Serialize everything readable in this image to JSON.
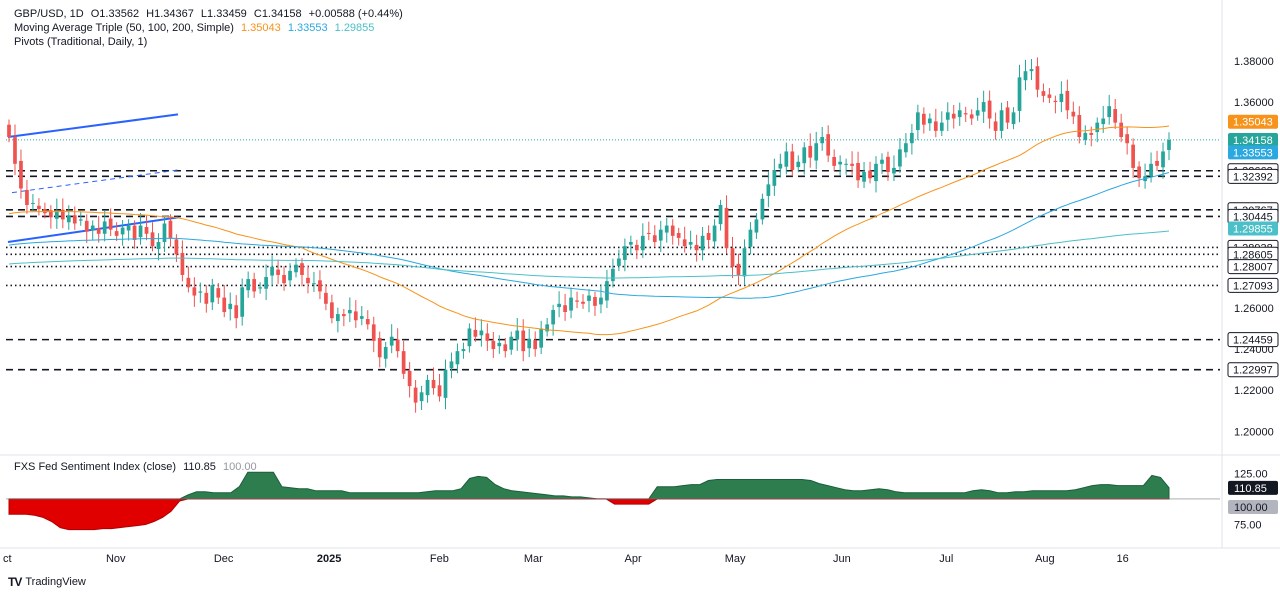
{
  "header": {
    "symbol_line": {
      "symbol": "GBP/USD, 1D",
      "open": "O1.33562",
      "high": "H1.34367",
      "low": "L1.33459",
      "close": "C1.34158",
      "change": "+0.00588 (+0.44%)"
    },
    "ma_line": {
      "label": "Moving Average Triple (50, 100, 200, Simple)",
      "v50": "1.35043",
      "v100": "1.33553",
      "v200": "1.29855"
    },
    "pivots_line": {
      "label": "Pivots (Traditional, Daily, 1)"
    }
  },
  "sentiment_legend": {
    "label": "FXS Fed Sentiment Index (close)",
    "value": "110.85",
    "base": "100.00"
  },
  "footer": {
    "brand": "TradingView"
  },
  "colors": {
    "up": "#26a69a",
    "down": "#ef5350",
    "ma50": "#f7931a",
    "ma100": "#2ba8e0",
    "ma200": "#4cc0c8",
    "trendline": "#2962ff",
    "sentiment_fill": "#2e7d4f",
    "sentiment_neg": "#e00000"
  },
  "chart_data": {
    "type": "candlestick",
    "title": "GBP/USD, 1D",
    "price_axis": {
      "ticks": [
        1.38,
        1.36,
        1.26,
        1.24,
        1.22,
        1.2
      ],
      "ylim": [
        1.19,
        1.395
      ]
    },
    "x_ticks": [
      "Oct",
      "Nov",
      "Dec",
      "2025",
      "Feb",
      "Mar",
      "Apr",
      "May",
      "Jun",
      "Jul",
      "Aug",
      "16"
    ],
    "price_badges": [
      {
        "label": "1.35043",
        "value": 1.35043,
        "color": "#f7931a"
      },
      {
        "label": "1.34158",
        "value": 1.34158,
        "color": "#26a69a"
      },
      {
        "label": "1.33553",
        "value": 1.33553,
        "color": "#2ba8e0"
      },
      {
        "label": "1.32663",
        "value": 1.32663,
        "color": "plain"
      },
      {
        "label": "1.32392",
        "value": 1.32392,
        "color": "plain"
      },
      {
        "label": "1.30767",
        "value": 1.30767,
        "color": "plain"
      },
      {
        "label": "1.30445",
        "value": 1.30445,
        "color": "plain"
      },
      {
        "label": "1.29855",
        "value": 1.29855,
        "color": "#4cc0c8"
      },
      {
        "label": "1.28938",
        "value": 1.28938,
        "color": "plain"
      },
      {
        "label": "1.28605",
        "value": 1.28605,
        "color": "plain"
      },
      {
        "label": "1.28007",
        "value": 1.28007,
        "color": "plain"
      },
      {
        "label": "1.27093",
        "value": 1.27093,
        "color": "plain"
      },
      {
        "label": "1.24459",
        "value": 1.24459,
        "color": "plain"
      },
      {
        "label": "1.22997",
        "value": 1.22997,
        "color": "plain"
      }
    ],
    "pivot_lines": [
      {
        "value": 1.32663,
        "style": "dashed"
      },
      {
        "value": 1.32392,
        "style": "dashed"
      },
      {
        "value": 1.30767,
        "style": "dashed"
      },
      {
        "value": 1.30445,
        "style": "dashed"
      },
      {
        "value": 1.28938,
        "style": "dotted"
      },
      {
        "value": 1.28605,
        "style": "dotted"
      },
      {
        "value": 1.28007,
        "style": "dotted"
      },
      {
        "value": 1.27093,
        "style": "dotted"
      },
      {
        "value": 1.24459,
        "style": "dashed"
      },
      {
        "value": 1.22997,
        "style": "dashed"
      }
    ],
    "close_series": [
      1.343,
      1.33,
      1.318,
      1.31,
      1.311,
      1.308,
      1.306,
      1.304,
      1.307,
      1.303,
      1.305,
      1.301,
      1.303,
      1.297,
      1.3,
      1.296,
      1.302,
      1.298,
      1.295,
      1.299,
      1.3,
      1.293,
      1.3,
      1.296,
      1.29,
      1.292,
      1.301,
      1.294,
      1.286,
      1.276,
      1.27,
      1.266,
      1.268,
      1.262,
      1.271,
      1.265,
      1.258,
      1.262,
      1.255,
      1.27,
      1.274,
      1.268,
      1.27,
      1.275,
      1.28,
      1.276,
      1.272,
      1.278,
      1.281,
      1.276,
      1.272,
      1.272,
      1.268,
      1.262,
      1.255,
      1.257,
      1.256,
      1.259,
      1.254,
      1.256,
      1.252,
      1.244,
      1.236,
      1.241,
      1.246,
      1.239,
      1.228,
      1.222,
      1.214,
      1.219,
      1.225,
      1.221,
      1.217,
      1.23,
      1.234,
      1.239,
      1.24,
      1.25,
      1.246,
      1.249,
      1.244,
      1.24,
      1.243,
      1.239,
      1.246,
      1.249,
      1.239,
      1.245,
      1.24,
      1.25,
      1.252,
      1.259,
      1.262,
      1.258,
      1.265,
      1.263,
      1.262,
      1.266,
      1.261,
      1.265,
      1.273,
      1.279,
      1.284,
      1.29,
      1.292,
      1.288,
      1.295,
      1.296,
      1.292,
      1.298,
      1.3,
      1.295,
      1.294,
      1.29,
      1.292,
      1.288,
      1.295,
      1.293,
      1.3,
      1.31,
      1.289,
      1.28,
      1.276,
      1.289,
      1.298,
      1.303,
      1.313,
      1.32,
      1.327,
      1.33,
      1.336,
      1.327,
      1.331,
      1.338,
      1.333,
      1.34,
      1.343,
      1.334,
      1.329,
      1.331,
      1.33,
      1.329,
      1.322,
      1.326,
      1.323,
      1.33,
      1.332,
      1.326,
      1.328,
      1.337,
      1.34,
      1.345,
      1.355,
      1.349,
      1.352,
      1.346,
      1.35,
      1.355,
      1.352,
      1.356,
      1.354,
      1.352,
      1.356,
      1.36,
      1.352,
      1.346,
      1.356,
      1.35,
      1.355,
      1.372,
      1.375,
      1.376,
      1.366,
      1.363,
      1.362,
      1.36,
      1.364,
      1.356,
      1.353,
      1.343,
      1.345,
      1.344,
      1.35,
      1.352,
      1.358,
      1.35,
      1.343,
      1.34,
      1.328,
      1.323,
      1.324,
      1.33,
      1.329,
      1.336,
      1.3416
    ],
    "ma50_label": "1.35043",
    "ma100_label": "1.33553",
    "ma200_label": "1.29855",
    "sentiment": {
      "ticks": [
        125,
        100,
        75
      ],
      "ylim": [
        55,
        140
      ],
      "base": 100,
      "last": 110.85,
      "series": [
        85,
        85,
        85,
        84,
        82,
        78,
        72,
        70,
        70,
        70,
        70,
        71,
        71,
        72,
        73,
        74,
        75,
        78,
        82,
        88,
        98,
        104,
        107,
        107,
        106,
        106,
        106,
        112,
        126,
        126,
        126,
        126,
        112,
        111,
        110,
        110,
        108,
        108,
        108,
        108,
        106,
        106,
        106,
        106,
        106,
        106,
        106,
        106,
        106,
        107,
        108,
        108,
        108,
        110,
        120,
        122,
        121,
        114,
        110,
        108,
        107,
        106,
        105,
        104,
        103,
        103,
        102,
        102,
        101,
        100,
        100,
        95,
        95,
        95,
        95,
        95,
        112,
        112,
        112,
        113,
        114,
        114,
        118,
        119,
        119,
        119,
        119,
        119,
        119,
        119,
        119,
        119,
        119,
        119,
        118,
        115,
        113,
        111,
        109,
        108,
        108,
        109,
        110,
        109,
        107,
        106,
        106,
        106,
        106,
        106,
        106,
        106,
        106,
        108,
        109,
        108,
        106,
        106,
        107,
        107,
        108,
        108,
        108,
        108,
        108,
        109,
        111,
        113,
        114,
        114,
        113,
        113,
        113,
        113,
        123,
        121,
        111
      ]
    }
  }
}
